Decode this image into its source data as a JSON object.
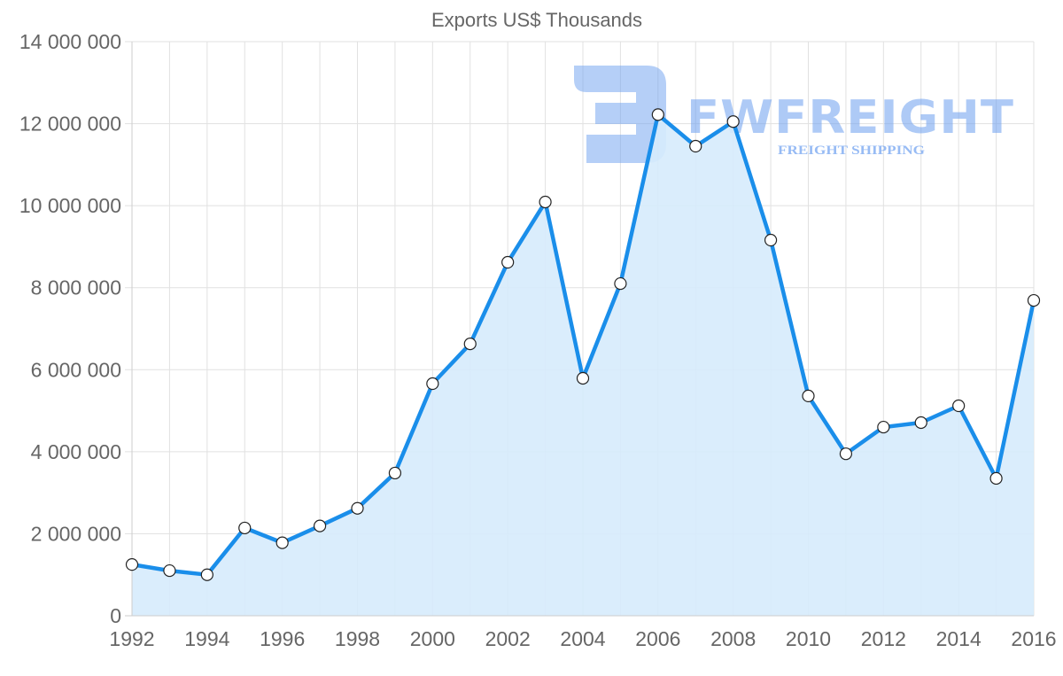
{
  "chart_data": {
    "type": "area",
    "title": "Exports US$ Thousands",
    "xlabel": "",
    "ylabel": "",
    "ylim": [
      0,
      14000000
    ],
    "grid": true,
    "legend": "none",
    "x": [
      1992,
      1993,
      1994,
      1995,
      1996,
      1997,
      1998,
      1999,
      2000,
      2001,
      2002,
      2003,
      2004,
      2005,
      2006,
      2007,
      2008,
      2009,
      2010,
      2011,
      2012,
      2013,
      2014,
      2015,
      2016
    ],
    "series": [
      {
        "name": "Exports",
        "values": [
          1250000,
          1100000,
          1000000,
          2140000,
          1780000,
          2190000,
          2620000,
          3480000,
          5660000,
          6630000,
          8620000,
          10090000,
          5790000,
          8100000,
          12220000,
          11450000,
          12050000,
          9160000,
          5360000,
          3950000,
          4600000,
          4710000,
          5120000,
          3350000,
          7690000
        ],
        "color": "#1a8eea",
        "fill": "#d6ebfc"
      }
    ],
    "y_ticks": [
      0,
      2000000,
      4000000,
      6000000,
      8000000,
      10000000,
      12000000,
      14000000
    ],
    "y_tick_labels": [
      "0",
      "2 000 000",
      "4 000 000",
      "6 000 000",
      "8 000 000",
      "10 000 000",
      "12 000 000",
      "14 000 000"
    ],
    "x_tick_labels": [
      "1992",
      "1994",
      "1996",
      "1998",
      "2000",
      "2002",
      "2004",
      "2006",
      "2008",
      "2010",
      "2012",
      "2014",
      "2016"
    ]
  },
  "watermark": {
    "brand": "FWFREIGHT",
    "tagline": "FREIGHT SHIPPING",
    "color": "#6c9ff0"
  }
}
